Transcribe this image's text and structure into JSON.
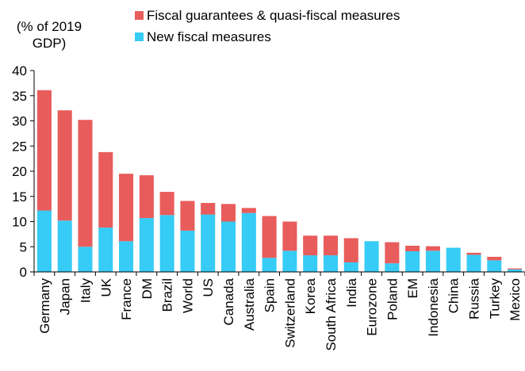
{
  "colors": {
    "guarantees": "#E85C5C",
    "fiscal": "#36CCF5",
    "axis": "#000000"
  },
  "unit_label": {
    "line1": "(% of 2019",
    "line2": "GDP)"
  },
  "chart_data": {
    "type": "bar",
    "stacked": true,
    "legend_placement": "top",
    "grid": false,
    "ylim": [
      0,
      40
    ],
    "yticks": [
      0,
      5,
      10,
      15,
      20,
      25,
      30,
      35,
      40
    ],
    "categories": [
      "Germany",
      "Japan",
      "Italy",
      "UK",
      "France",
      "DM",
      "Brazil",
      "World",
      "US",
      "Canada",
      "Australia",
      "Spain",
      "Switzerland",
      "Korea",
      "South Africa",
      "India",
      "Eurozone",
      "Poland",
      "EM",
      "Indonesia",
      "China",
      "Russia",
      "Turkey",
      "Mexico"
    ],
    "series": [
      {
        "name": "New fiscal measures",
        "key": "fiscal",
        "values": [
          12.2,
          10.2,
          5.0,
          8.8,
          6.1,
          10.7,
          11.3,
          8.2,
          11.4,
          10.0,
          11.7,
          2.8,
          4.2,
          3.3,
          3.3,
          1.9,
          6.1,
          1.7,
          4.1,
          4.2,
          4.8,
          3.4,
          2.3,
          0.5
        ]
      },
      {
        "name": "Fiscal guarantees & quasi-fiscal measures",
        "key": "guarantees",
        "values": [
          23.9,
          21.9,
          25.2,
          15.0,
          13.4,
          8.5,
          4.6,
          5.9,
          2.3,
          3.5,
          1.0,
          8.3,
          5.8,
          3.9,
          3.9,
          4.8,
          0.0,
          4.2,
          1.1,
          0.9,
          0.0,
          0.4,
          0.7,
          0.2
        ]
      }
    ]
  }
}
